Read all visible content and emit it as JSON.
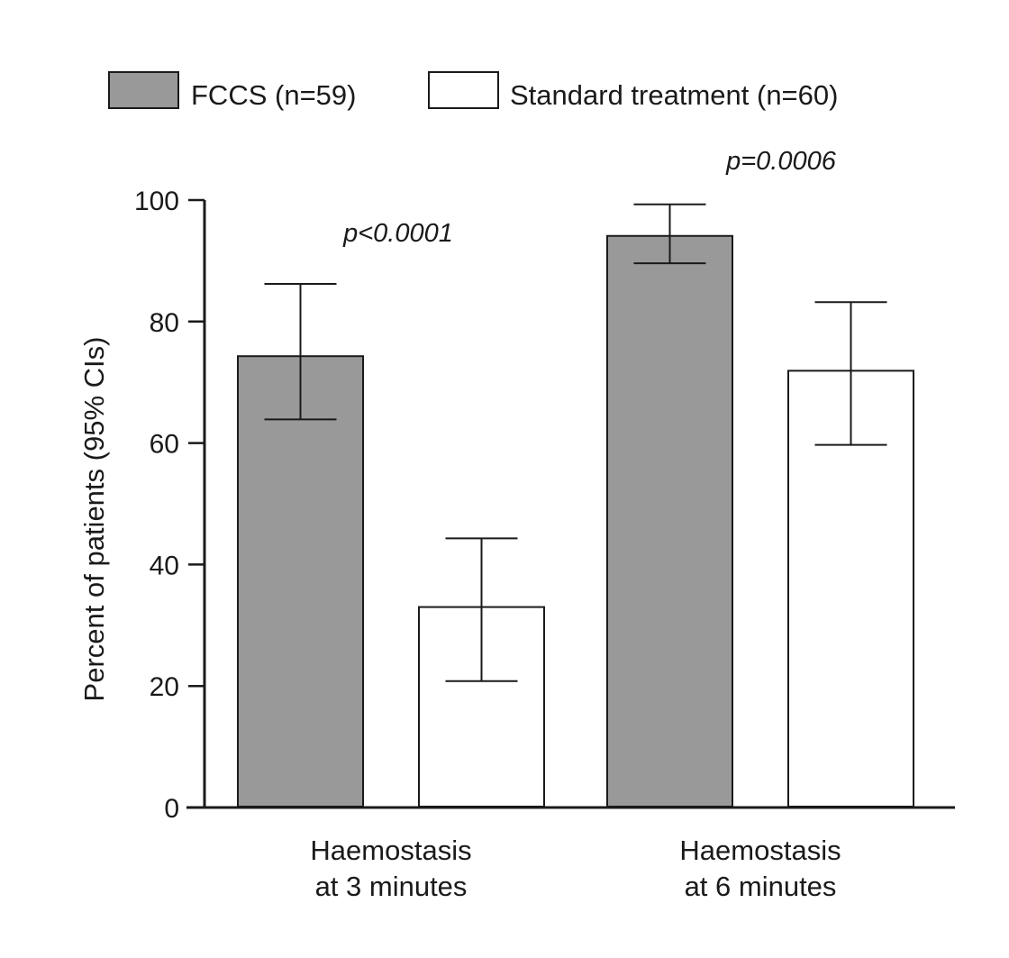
{
  "chart_data": {
    "type": "bar",
    "title": "",
    "xlabel": "",
    "ylabel": "Percent of patients (95% CIs)",
    "ylim": [
      0,
      100
    ],
    "yticks": [
      0,
      20,
      40,
      60,
      80,
      100
    ],
    "grid": false,
    "legend_position": "top",
    "categories": [
      [
        "Haemostasis",
        "at 3 minutes"
      ],
      [
        "Haemostasis",
        "at 6 minutes"
      ]
    ],
    "series": [
      {
        "name": "FCCS (n=59)",
        "color": "#999999",
        "values": [
          74.3,
          94.1
        ],
        "ci_lower": [
          63.9,
          89.6
        ],
        "ci_upper": [
          86.2,
          99.3
        ]
      },
      {
        "name": "Standard treatment (n=60)",
        "color": "#ffffff",
        "values": [
          33.0,
          71.9
        ],
        "ci_lower": [
          20.8,
          59.7
        ],
        "ci_upper": [
          44.3,
          83.2
        ]
      }
    ],
    "annotations": [
      {
        "text": "p<0.0001",
        "category_index": 0
      },
      {
        "text": "p=0.0006",
        "category_index": 1
      }
    ]
  }
}
